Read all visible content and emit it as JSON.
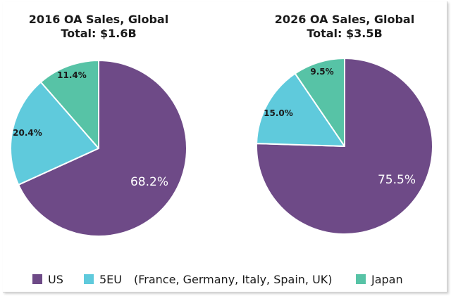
{
  "chart_data": [
    {
      "type": "pie",
      "title": "2016 OA Sales, Global",
      "subtitle": "Total: $1.6B",
      "categories": [
        "US",
        "5EU",
        "Japan"
      ],
      "values": [
        68.2,
        20.4,
        11.4
      ],
      "labels": [
        "68.2%",
        "20.4%",
        "11.4%"
      ],
      "colors": [
        "#6e4a87",
        "#5fcadc",
        "#57c3a6"
      ]
    },
    {
      "type": "pie",
      "title": "2026 OA Sales, Global",
      "subtitle": "Total: $3.5B",
      "categories": [
        "US",
        "5EU",
        "Japan"
      ],
      "values": [
        75.5,
        15.0,
        9.5
      ],
      "labels": [
        "75.5%",
        "15.0%",
        "9.5%"
      ],
      "colors": [
        "#6e4a87",
        "#5fcadc",
        "#57c3a6"
      ]
    }
  ],
  "legend": {
    "placement": "bottom",
    "items": [
      {
        "label": "US",
        "color": "#6e4a87"
      },
      {
        "label": "5EU",
        "color": "#5fcadc"
      },
      {
        "label": "(France, Germany, Italy, Spain, UK)",
        "color": ""
      },
      {
        "label": "Japan",
        "color": "#57c3a6"
      }
    ]
  }
}
